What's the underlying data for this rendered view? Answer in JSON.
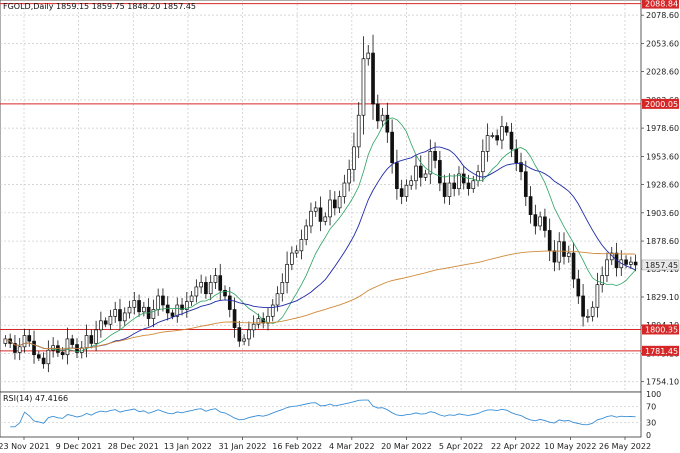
{
  "header": {
    "symbol_line": "FGOLD,Daily  1859.15 1859.75 1848.20 1857.45"
  },
  "rsi_header": "RSI(14) 47.4166",
  "colors": {
    "candle_up": "#ffffff",
    "candle_down": "#111111",
    "ma_fast": "#2ca25f",
    "ma_mid": "#1f2aa8",
    "ma_slow": "#d08a3a",
    "level_line": "#d62728",
    "rsi_line": "#3a8fd6",
    "price_label_bg": "#d62728",
    "last_label_bg": "#e8e8e8"
  },
  "chart_data": {
    "type": "candlestick",
    "title": "FGOLD,Daily",
    "ohlc_last": {
      "open": 1859.15,
      "high": 1859.75,
      "low": 1848.2,
      "close": 1857.45
    },
    "price_ticks": [
      "2078.60",
      "2053.60",
      "2028.60",
      "2003.60",
      "1978.60",
      "1953.60",
      "1928.60",
      "1903.60",
      "1878.60",
      "1854.10",
      "1829.10",
      "1804.10",
      "1779.10",
      "1754.10"
    ],
    "price_tick_values": [
      2078.6,
      2053.6,
      2028.6,
      2003.6,
      1978.6,
      1953.6,
      1928.6,
      1903.6,
      1878.6,
      1854.1,
      1829.1,
      1804.1,
      1779.1,
      1754.1
    ],
    "ylim": [
      1745,
      2092
    ],
    "date_ticks": [
      "23 Nov 2021",
      "9 Dec 2021",
      "28 Dec 2021",
      "13 Jan 2022",
      "31 Jan 2022",
      "16 Feb 2022",
      "4 Mar 2022",
      "20 Mar 2022",
      "5 Apr 2022",
      "22 Apr 2022",
      "10 May 2022",
      "26 May 2022"
    ],
    "levels": [
      {
        "label": "2088.84",
        "value": 2088.84
      },
      {
        "label": "2000.05",
        "value": 2000.05
      },
      {
        "label": "1800.35",
        "value": 1800.35
      },
      {
        "label": "1781.45",
        "value": 1781.45
      }
    ],
    "last_price_label": "1857.45",
    "closes": [
      1792,
      1788,
      1780,
      1785,
      1795,
      1790,
      1778,
      1775,
      1770,
      1782,
      1786,
      1780,
      1778,
      1792,
      1787,
      1780,
      1784,
      1795,
      1788,
      1800,
      1808,
      1805,
      1812,
      1818,
      1808,
      1815,
      1820,
      1826,
      1816,
      1820,
      1810,
      1818,
      1830,
      1822,
      1815,
      1812,
      1822,
      1818,
      1825,
      1830,
      1838,
      1842,
      1832,
      1842,
      1848,
      1835,
      1830,
      1818,
      1802,
      1790,
      1792,
      1800,
      1805,
      1810,
      1806,
      1812,
      1822,
      1832,
      1842,
      1858,
      1868,
      1870,
      1880,
      1892,
      1905,
      1908,
      1896,
      1900,
      1915,
      1908,
      1918,
      1930,
      1942,
      1962,
      1990,
      2040,
      2045,
      2000,
      1985,
      1990,
      1975,
      1948,
      1925,
      1918,
      1928,
      1932,
      1945,
      1935,
      1938,
      1958,
      1950,
      1930,
      1918,
      1930,
      1925,
      1938,
      1930,
      1925,
      1932,
      1940,
      1958,
      1972,
      1972,
      1968,
      1980,
      1975,
      1960,
      1948,
      1940,
      1918,
      1902,
      1892,
      1900,
      1888,
      1870,
      1860,
      1878,
      1865,
      1868,
      1845,
      1830,
      1812,
      1812,
      1820,
      1840,
      1848,
      1862,
      1868,
      1855,
      1862,
      1858,
      1860,
      1857.45
    ],
    "rsi_ticks": [
      "100",
      "70",
      "30",
      "0"
    ],
    "rsi_tick_values": [
      100,
      70,
      30,
      0
    ],
    "rsi_last": 47.4166
  }
}
